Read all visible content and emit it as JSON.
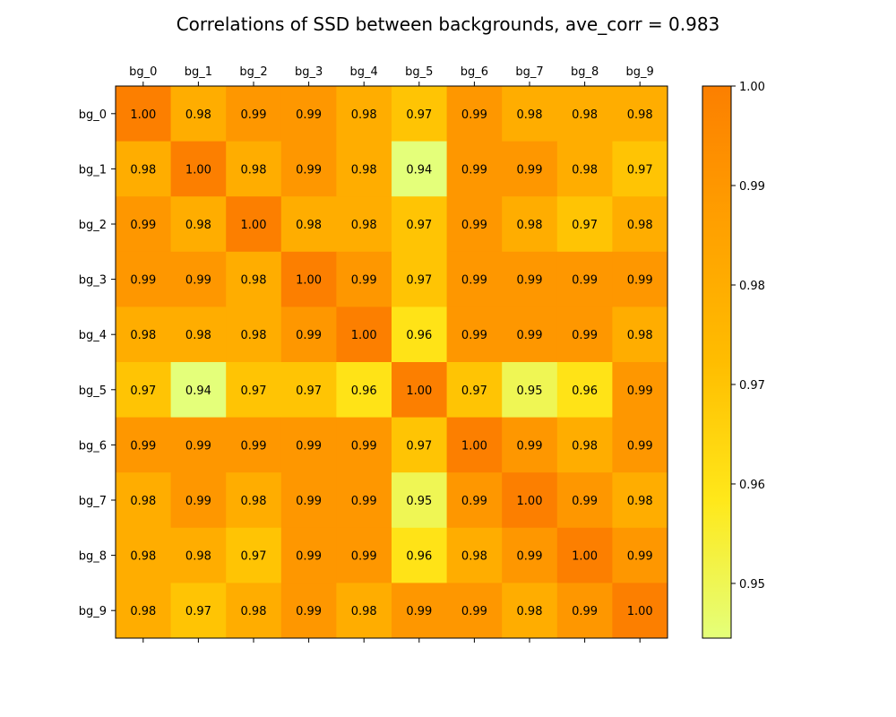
{
  "chart_data": {
    "type": "heatmap",
    "title": "Correlations of SSD between backgrounds, ave_corr = 0.983",
    "x_labels": [
      "bg_0",
      "bg_1",
      "bg_2",
      "bg_3",
      "bg_4",
      "bg_5",
      "bg_6",
      "bg_7",
      "bg_8",
      "bg_9"
    ],
    "y_labels": [
      "bg_0",
      "bg_1",
      "bg_2",
      "bg_3",
      "bg_4",
      "bg_5",
      "bg_6",
      "bg_7",
      "bg_8",
      "bg_9"
    ],
    "x_tick_position": "top",
    "values": [
      [
        1.0,
        0.98,
        0.99,
        0.99,
        0.98,
        0.97,
        0.99,
        0.98,
        0.98,
        0.98
      ],
      [
        0.98,
        1.0,
        0.98,
        0.99,
        0.98,
        0.94,
        0.99,
        0.99,
        0.98,
        0.97
      ],
      [
        0.99,
        0.98,
        1.0,
        0.98,
        0.98,
        0.97,
        0.99,
        0.98,
        0.97,
        0.98
      ],
      [
        0.99,
        0.99,
        0.98,
        1.0,
        0.99,
        0.97,
        0.99,
        0.99,
        0.99,
        0.99
      ],
      [
        0.98,
        0.98,
        0.98,
        0.99,
        1.0,
        0.96,
        0.99,
        0.99,
        0.99,
        0.98
      ],
      [
        0.97,
        0.94,
        0.97,
        0.97,
        0.96,
        1.0,
        0.97,
        0.95,
        0.96,
        0.99
      ],
      [
        0.99,
        0.99,
        0.99,
        0.99,
        0.99,
        0.97,
        1.0,
        0.99,
        0.98,
        0.99
      ],
      [
        0.98,
        0.99,
        0.98,
        0.99,
        0.99,
        0.95,
        0.99,
        1.0,
        0.99,
        0.98
      ],
      [
        0.98,
        0.98,
        0.97,
        0.99,
        0.99,
        0.96,
        0.98,
        0.99,
        1.0,
        0.99
      ],
      [
        0.98,
        0.97,
        0.98,
        0.99,
        0.98,
        0.99,
        0.99,
        0.98,
        0.99,
        1.0
      ]
    ],
    "value_format": "2 decimals",
    "colormap": "Wistia",
    "color_stops": [
      "#e4ff7a",
      "#ffe81a",
      "#ffbd00",
      "#ffa000",
      "#fc7f00"
    ],
    "colorbar": {
      "vmin": 0.9445,
      "vmax": 1.0,
      "ticks": [
        "0.95",
        "0.96",
        "0.97",
        "0.98",
        "0.99",
        "1.00"
      ]
    },
    "grid": false
  }
}
